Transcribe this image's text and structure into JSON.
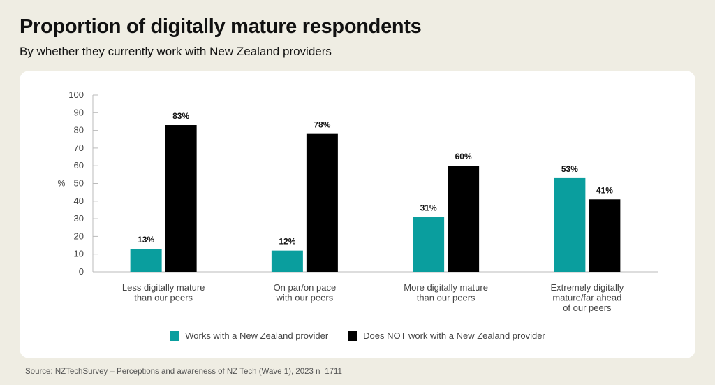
{
  "header": {
    "title": "Proportion of digitally mature respondents",
    "subtitle": "By whether they currently work with New Zealand providers"
  },
  "source": "Source: NZTechSurvey – Perceptions and awareness of NZ Tech (Wave 1), 2023 n=1711",
  "colors": {
    "works": "#0a9e9e",
    "not_works": "#000000"
  },
  "chart_data": {
    "type": "bar",
    "title": "Proportion of digitally mature respondents",
    "subtitle": "By whether they currently work with New Zealand providers",
    "xlabel": "",
    "ylabel": "%",
    "ylim": [
      0,
      100
    ],
    "yticks": [
      0,
      10,
      20,
      30,
      40,
      50,
      60,
      70,
      80,
      90,
      100
    ],
    "grid": false,
    "legend_position": "bottom",
    "categories": [
      [
        "Less digitally mature",
        "than our peers"
      ],
      [
        "On par/on pace",
        "with our peers"
      ],
      [
        "More digitally mature",
        "than our peers"
      ],
      [
        "Extremely digitally",
        "mature/far ahead",
        "of our peers"
      ]
    ],
    "series": [
      {
        "name": "Works with a New Zealand provider",
        "color": "#0a9e9e",
        "values": [
          13,
          12,
          31,
          53
        ],
        "labels": [
          "13%",
          "12%",
          "31%",
          "53%"
        ]
      },
      {
        "name": "Does NOT work with a New Zealand provider",
        "color": "#000000",
        "values": [
          83,
          78,
          60,
          41
        ],
        "labels": [
          "83%",
          "78%",
          "60%",
          "41%"
        ]
      }
    ]
  }
}
